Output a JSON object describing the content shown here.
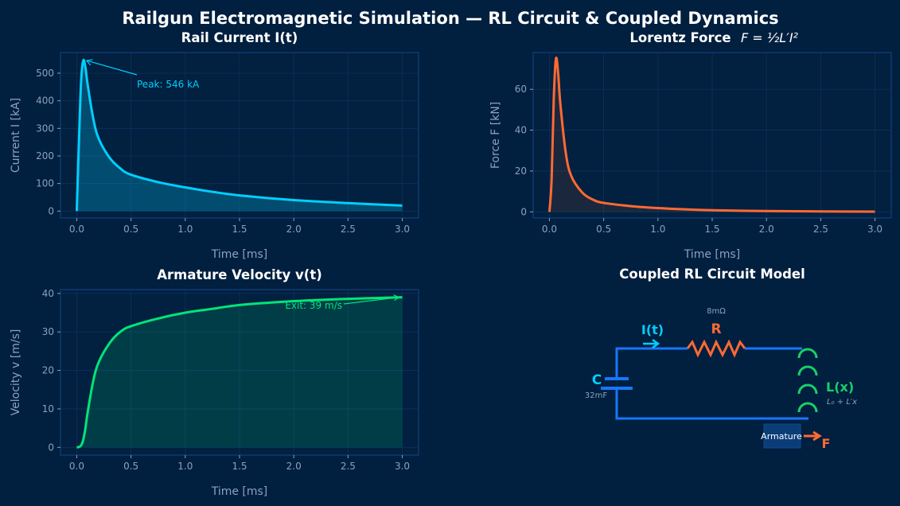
{
  "suptitle": "Railgun Electromagnetic Simulation — RL Circuit & Coupled Dynamics",
  "colors": {
    "background": "#011f3f",
    "current": "#00cfff",
    "force": "#ff6a33",
    "velocity": "#00e57a",
    "wire": "#1677ff",
    "inductor": "#18d068"
  },
  "chart_data": [
    {
      "type": "area",
      "title": "Rail Current  I(t)",
      "xlabel": "Time [ms]",
      "ylabel": "Current I [kA]",
      "xlim": [
        -0.15,
        3.15
      ],
      "ylim": [
        -25,
        575
      ],
      "grid": true,
      "xticks": [
        "0.0",
        "0.5",
        "1.0",
        "1.5",
        "2.0",
        "2.5",
        "3.0"
      ],
      "yticks": [
        "0",
        "100",
        "200",
        "300",
        "400",
        "500"
      ],
      "x": [
        0,
        0.02,
        0.04,
        0.06,
        0.08,
        0.1,
        0.15,
        0.2,
        0.3,
        0.4,
        0.5,
        0.75,
        1.0,
        1.25,
        1.5,
        2.0,
        2.5,
        3.0
      ],
      "y": [
        0,
        250,
        470,
        546,
        520,
        460,
        340,
        265,
        195,
        155,
        132,
        105,
        86,
        70,
        57,
        40,
        29,
        20
      ],
      "annotation": {
        "text": "Peak: 546 kA",
        "x": 0.06,
        "y": 546
      }
    },
    {
      "type": "area",
      "title": "Lorentz Force",
      "title_formula": "F = ½L′I²",
      "xlabel": "Time [ms]",
      "ylabel": "Force F [kN]",
      "xlim": [
        -0.15,
        3.15
      ],
      "ylim": [
        -3,
        78
      ],
      "grid": true,
      "xticks": [
        "0.0",
        "0.5",
        "1.0",
        "1.5",
        "2.0",
        "2.5",
        "3.0"
      ],
      "yticks": [
        "0",
        "20",
        "40",
        "60"
      ],
      "x": [
        0,
        0.02,
        0.04,
        0.06,
        0.08,
        0.1,
        0.15,
        0.2,
        0.3,
        0.4,
        0.5,
        0.75,
        1.0,
        1.25,
        1.5,
        2.0,
        2.5,
        3.0
      ],
      "y": [
        0,
        15.7,
        55.6,
        75,
        68,
        53.2,
        29.1,
        17.7,
        9.6,
        6.0,
        4.4,
        2.8,
        1.86,
        1.23,
        0.82,
        0.4,
        0.21,
        0.1
      ]
    },
    {
      "type": "area",
      "title": "Armature Velocity  v(t)",
      "xlabel": "Time [ms]",
      "ylabel": "Velocity v [m/s]",
      "xlim": [
        -0.15,
        3.15
      ],
      "ylim": [
        -2,
        41
      ],
      "grid": true,
      "xticks": [
        "0.0",
        "0.5",
        "1.0",
        "1.5",
        "2.0",
        "2.5",
        "3.0"
      ],
      "yticks": [
        "0",
        "10",
        "20",
        "30",
        "40"
      ],
      "x": [
        0,
        0.02,
        0.04,
        0.06,
        0.08,
        0.1,
        0.15,
        0.2,
        0.3,
        0.4,
        0.5,
        0.75,
        1.0,
        1.25,
        1.5,
        2.0,
        2.5,
        3.0
      ],
      "y": [
        0,
        0.1,
        0.5,
        2,
        5,
        9,
        17,
        22,
        27,
        30,
        31.5,
        33.5,
        35,
        36,
        37,
        38,
        38.6,
        39
      ],
      "annotation": {
        "text": "Exit: 39 m/s",
        "x": 3.0,
        "y": 39
      }
    }
  ],
  "diagram": {
    "title": "Coupled RL Circuit Model",
    "current_label": "I(t)",
    "resistor_label": "R",
    "resistor_value": "8mΩ",
    "capacitor_label": "C",
    "capacitor_value": "32mF",
    "inductor_label": "L(x)",
    "inductor_formula": "L₀ + L′x",
    "armature_label": "Armature",
    "force_label": "F"
  }
}
